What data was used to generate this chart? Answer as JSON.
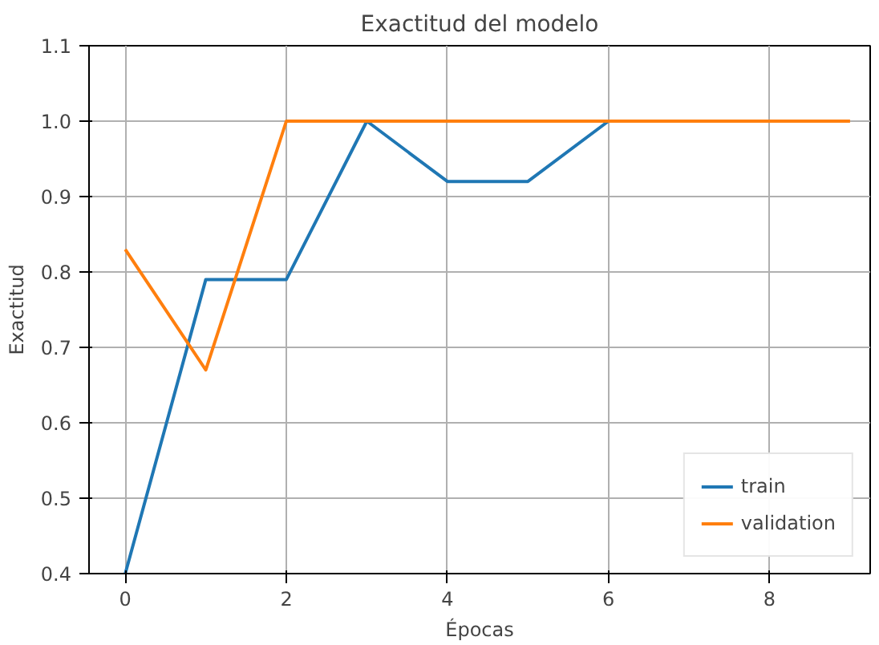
{
  "chart_data": {
    "type": "line",
    "title": "Exactitud del modelo",
    "xlabel": "Épocas",
    "ylabel": "Exactitud",
    "x": [
      0,
      1,
      2,
      3,
      4,
      5,
      6,
      7,
      8,
      9
    ],
    "series": [
      {
        "name": "train",
        "color": "#1f77b4",
        "values": [
          0.4,
          0.79,
          0.79,
          1.0,
          0.92,
          0.92,
          1.0,
          null,
          null,
          null
        ]
      },
      {
        "name": "validation",
        "color": "#ff7f0e",
        "values": [
          0.83,
          0.67,
          1.0,
          1.0,
          1.0,
          1.0,
          1.0,
          1.0,
          1.0,
          1.0
        ]
      }
    ],
    "xlim": [
      -0.45,
      9.25
    ],
    "ylim": [
      0.4,
      1.1
    ],
    "xticks": [
      0,
      2,
      4,
      6,
      8
    ],
    "yticks": [
      {
        "value": 0.4,
        "label": "0.4"
      },
      {
        "value": 0.5,
        "label": "0.5"
      },
      {
        "value": 0.6,
        "label": "0.6"
      },
      {
        "value": 0.7,
        "label": "0.7"
      },
      {
        "value": 0.8,
        "label": "0.8"
      },
      {
        "value": 0.9,
        "label": "0.9"
      },
      {
        "value": 1.0,
        "label": "1.0"
      },
      {
        "value": 1.1,
        "label": "1.1"
      }
    ],
    "grid": true,
    "legend": "bottom right"
  }
}
